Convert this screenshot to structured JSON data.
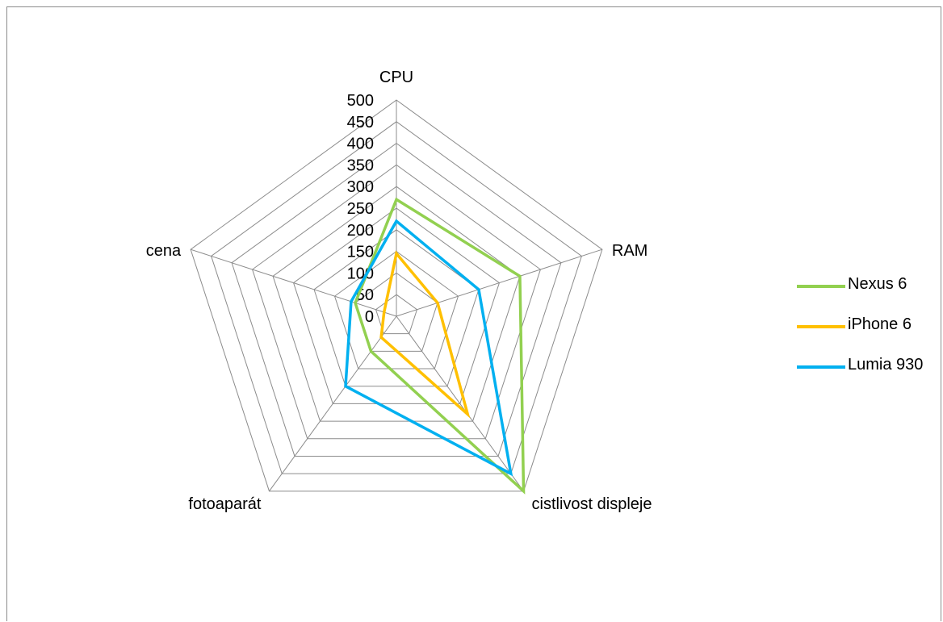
{
  "chart_data": {
    "type": "radar",
    "axes": [
      "CPU",
      "RAM",
      "cistlivost displeje",
      "fotoaparát",
      "cena"
    ],
    "rlim": [
      0,
      500
    ],
    "ticks": [
      0,
      50,
      100,
      150,
      200,
      250,
      300,
      350,
      400,
      450,
      500
    ],
    "tick_labels": [
      "0",
      "50",
      "100",
      "150",
      "200",
      "250",
      "300",
      "350",
      "400",
      "450",
      "500"
    ],
    "grid": true,
    "legend_position": "right",
    "series": [
      {
        "name": "Nexus 6",
        "color": "#92d050",
        "values": [
          270,
          300,
          500,
          100,
          100
        ]
      },
      {
        "name": "iPhone 6",
        "color": "#ffc000",
        "values": [
          145,
          100,
          280,
          60,
          30
        ]
      },
      {
        "name": "Lumia 930",
        "color": "#00b0f0",
        "values": [
          220,
          200,
          450,
          200,
          110
        ]
      }
    ]
  }
}
